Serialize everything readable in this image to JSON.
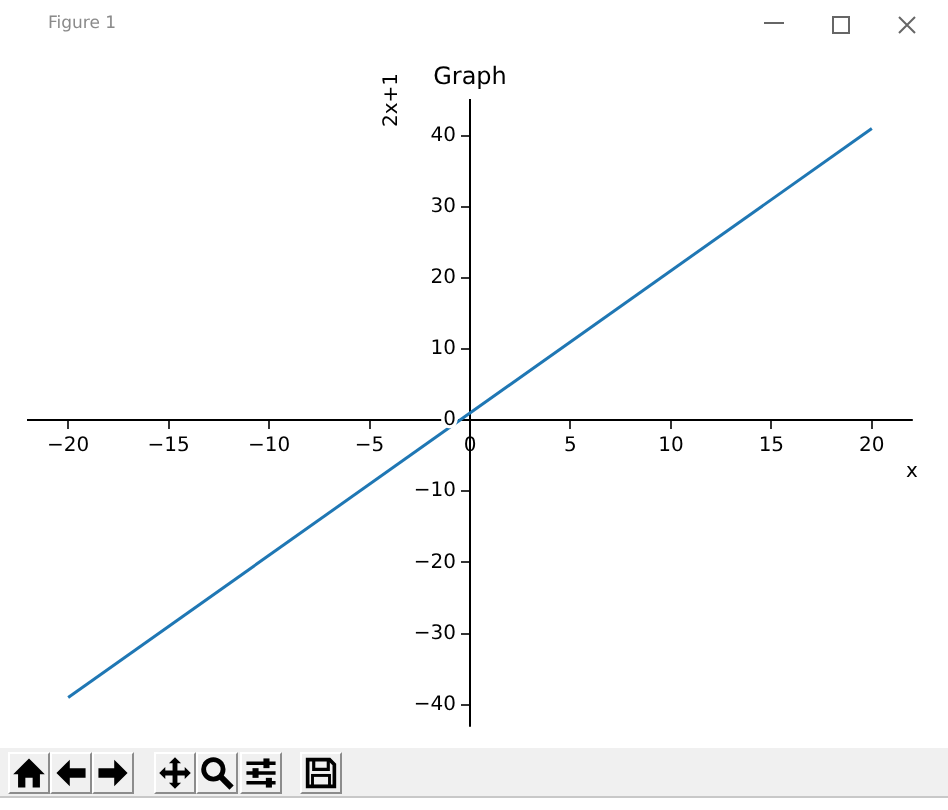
{
  "chart_data": {
    "type": "line",
    "title": "Graph",
    "xlabel": "x",
    "ylabel": "2x+1",
    "annotations": [
      "Figure 1"
    ],
    "x": [
      -20,
      20
    ],
    "values": [
      -39,
      41
    ],
    "color": "#1f77b4",
    "line_style": "solid",
    "xlim": [
      -22,
      22
    ],
    "ylim": [
      -43,
      45
    ],
    "xticks": [
      -20,
      -15,
      -10,
      -5,
      0,
      5,
      10,
      15,
      20
    ],
    "yticks": [
      -40,
      -30,
      -20,
      -10,
      0,
      10,
      20,
      30,
      40
    ]
  }
}
